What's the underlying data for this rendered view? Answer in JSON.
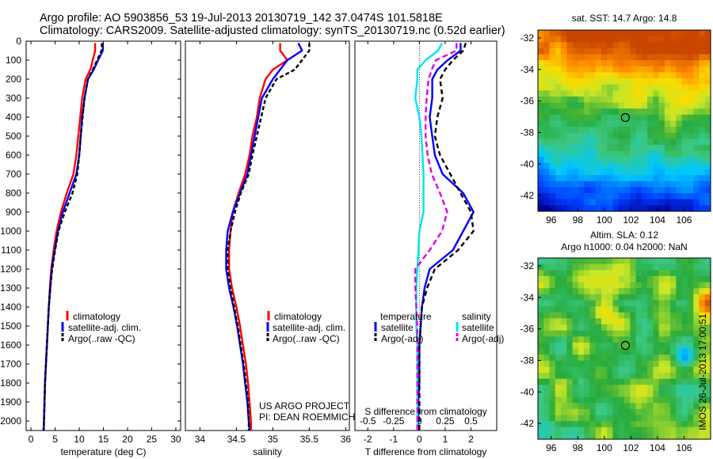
{
  "header": {
    "line1": "Argo profile: AO 5903856_53 19-Jul-2013 20130719_142 37.0474S 101.5818E",
    "line2": "Climatology: CARS2009. Satellite-adjusted climatology: synTS_20130719.nc (0.52d earlier)"
  },
  "colors": {
    "climatology": "#ff0000",
    "satellite": "#0000ff",
    "argo": "#000000",
    "sat_salinity": "#00e5ee",
    "argo_salinity": "#e000e0"
  },
  "chart_data": [
    {
      "type": "line",
      "name": "temperature",
      "xlabel": "temperature (deg C)",
      "ylabel": "",
      "xlim": [
        -1,
        31
      ],
      "ylim": [
        2050,
        0
      ],
      "xticks": [
        "0",
        "5",
        "10",
        "15",
        "20",
        "25",
        "30"
      ],
      "yticks": [
        "0",
        "100",
        "200",
        "300",
        "400",
        "500",
        "600",
        "700",
        "800",
        "900",
        "1000",
        "1100",
        "1200",
        "1300",
        "1400",
        "1500",
        "1600",
        "1700",
        "1800",
        "1900",
        "2000"
      ],
      "legend": [
        "climatology",
        "satellite-adj. clim.",
        "Argo(..raw -QC)"
      ],
      "depth": [
        10,
        50,
        100,
        150,
        200,
        300,
        400,
        500,
        600,
        700,
        800,
        900,
        1000,
        1100,
        1200,
        1300,
        1400,
        1500,
        1600,
        1700,
        1800,
        1900,
        2000,
        2050
      ],
      "series": [
        {
          "name": "climatology",
          "values": [
            13.3,
            13.3,
            12.8,
            12.3,
            11.3,
            10.6,
            10.2,
            9.8,
            9.4,
            8.8,
            7.4,
            6.2,
            5.3,
            4.7,
            4.2,
            3.9,
            3.7,
            3.5,
            3.3,
            3.1,
            2.9,
            2.8,
            2.7,
            2.7
          ]
        },
        {
          "name": "satellite-adj. clim.",
          "values": [
            14.9,
            14.9,
            13.9,
            13.0,
            11.8,
            11.1,
            10.6,
            10.3,
            10.0,
            9.4,
            8.0,
            6.6,
            5.6,
            4.9,
            4.3,
            4.0,
            3.7,
            3.5,
            3.3,
            3.1,
            2.9,
            2.8,
            2.7,
            2.6
          ]
        },
        {
          "name": "Argo(..raw -QC)",
          "values": [
            14.7,
            14.6,
            13.7,
            12.8,
            11.8,
            11.1,
            10.7,
            10.3,
            10.0,
            9.6,
            8.6,
            7.0,
            5.7,
            5.0,
            4.4,
            4.0,
            3.7,
            3.5,
            3.3,
            3.1,
            2.9,
            2.8,
            2.7,
            2.6
          ]
        }
      ]
    },
    {
      "type": "line",
      "name": "salinity",
      "xlabel": "salinity",
      "xlim": [
        33.8,
        36.05
      ],
      "ylim": [
        2050,
        0
      ],
      "xticks": [
        "34",
        "34.5",
        "35",
        "35.5",
        "36"
      ],
      "legend": [
        "climatology",
        "satellite-adj. clim.",
        "Argo(..raw -QC)"
      ],
      "annotation": [
        "US ARGO PROJECT",
        "PI: DEAN ROEMMICH"
      ],
      "depth": [
        10,
        50,
        100,
        150,
        200,
        300,
        400,
        500,
        600,
        700,
        800,
        900,
        1000,
        1100,
        1200,
        1300,
        1400,
        1500,
        1600,
        1700,
        1800,
        1900,
        2000,
        2050
      ],
      "series": [
        {
          "name": "climatology",
          "values": [
            35.1,
            35.1,
            35.2,
            35.0,
            34.9,
            34.82,
            34.78,
            34.72,
            34.68,
            34.62,
            34.53,
            34.45,
            34.42,
            34.4,
            34.4,
            34.44,
            34.5,
            34.55,
            34.59,
            34.63,
            34.66,
            34.68,
            34.7,
            34.7
          ]
        },
        {
          "name": "satellite-adj. clim.",
          "values": [
            35.35,
            35.4,
            35.2,
            35.1,
            35.0,
            34.85,
            34.8,
            34.75,
            34.7,
            34.65,
            34.55,
            34.45,
            34.38,
            34.36,
            34.36,
            34.4,
            34.46,
            34.51,
            34.55,
            34.59,
            34.62,
            34.65,
            34.67,
            34.68
          ]
        },
        {
          "name": "Argo(..raw -QC)",
          "values": [
            35.5,
            35.5,
            35.4,
            35.3,
            35.05,
            34.9,
            34.84,
            34.78,
            34.72,
            34.67,
            34.56,
            34.48,
            34.42,
            34.38,
            34.38,
            34.42,
            34.47,
            34.52,
            34.56,
            34.6,
            34.63,
            34.66,
            34.67,
            34.67
          ]
        }
      ]
    },
    {
      "type": "line",
      "name": "difference",
      "xlabel": "T difference from climatology",
      "xlabel_top": "S difference from climatology",
      "xlim": [
        -2.5,
        3.0
      ],
      "ylim": [
        2050,
        0
      ],
      "xticks": [
        "-2",
        "-1",
        "0",
        "1",
        "2"
      ],
      "xticks_top": [
        "-0.5",
        "-0.25",
        "0",
        "0.25",
        "0.5"
      ],
      "legend_titles": [
        "temperature",
        "salinity"
      ],
      "legend": [
        "satellite",
        "Argo(-adj)",
        "satellite",
        "Argo(-adj)"
      ],
      "depth": [
        10,
        50,
        100,
        150,
        200,
        300,
        400,
        500,
        600,
        700,
        800,
        900,
        1000,
        1100,
        1200,
        1300,
        1400,
        1500,
        1600,
        1700,
        1800,
        1900,
        2000,
        2050
      ],
      "series": [
        {
          "name": "satellite",
          "quantity": "temperature",
          "values": [
            1.6,
            1.6,
            1.1,
            0.7,
            0.5,
            0.5,
            0.4,
            0.5,
            0.6,
            0.9,
            1.7,
            2.1,
            1.7,
            1.3,
            0.4,
            0.2,
            0.1,
            0.05,
            0.0,
            0.0,
            0.0,
            -0.05,
            -0.05,
            -0.05
          ]
        },
        {
          "name": "Argo(-adj)",
          "quantity": "temperature",
          "values": [
            1.8,
            1.7,
            1.3,
            1.0,
            0.8,
            0.9,
            0.7,
            0.6,
            0.8,
            1.2,
            1.6,
            2.0,
            2.1,
            1.5,
            0.6,
            0.3,
            0.1,
            0.05,
            0.0,
            0.0,
            0.0,
            0.0,
            0.0,
            0.0
          ]
        },
        {
          "name": "satellite",
          "quantity": "salinity",
          "values": [
            0.22,
            0.18,
            0.06,
            -0.02,
            -0.02,
            -0.04,
            0.0,
            0.02,
            0.03,
            0.04,
            0.04,
            0.04,
            0.0,
            -0.01,
            -0.02,
            -0.03,
            -0.03,
            -0.03,
            -0.02,
            -0.02,
            -0.02,
            -0.02,
            -0.02,
            -0.02
          ]
        },
        {
          "name": "Argo(-adj)",
          "quantity": "salinity",
          "values": [
            0.36,
            0.36,
            0.16,
            0.12,
            0.09,
            0.07,
            0.06,
            0.06,
            0.08,
            0.12,
            0.2,
            0.27,
            0.22,
            0.1,
            -0.04,
            -0.04,
            -0.03,
            -0.02,
            -0.02,
            -0.02,
            -0.02,
            -0.02,
            -0.02,
            -0.02
          ]
        }
      ]
    },
    {
      "type": "heatmap",
      "name": "sst-map",
      "title": "sat. SST: 14.7  Argo: 14.8",
      "xlim": [
        95,
        108
      ],
      "ylim": [
        -43,
        -31.5
      ],
      "xticks": [
        "96",
        "98",
        "100",
        "102",
        "104",
        "106"
      ],
      "yticks": [
        "-32",
        "-34",
        "-36",
        "-38",
        "-40",
        "-42"
      ],
      "marker": {
        "lon": 101.58,
        "lat": -37.05
      }
    },
    {
      "type": "heatmap",
      "name": "sla-map",
      "title_lines": [
        "Altim. SLA: 0.12",
        "Argo h1000: 0.04 h2000: NaN"
      ],
      "xlim": [
        95,
        108
      ],
      "ylim": [
        -43,
        -31.5
      ],
      "xticks": [
        "96",
        "98",
        "100",
        "102",
        "104",
        "106"
      ],
      "yticks": [
        "-32",
        "-34",
        "-36",
        "-38",
        "-40",
        "-42"
      ],
      "marker": {
        "lon": 101.58,
        "lat": -37.05
      }
    }
  ],
  "side_label": "IMOS 26-Jul-2013 17:00:51"
}
